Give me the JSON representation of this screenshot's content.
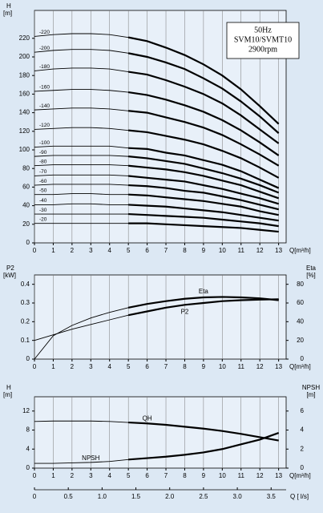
{
  "chart_data": [
    {
      "type": "line",
      "ylabel": [
        "H",
        "[m]"
      ],
      "xlabel": "Q[m³/h]",
      "annotation": [
        "50Hz",
        "SVM10/SVMT10",
        "2900rpm"
      ],
      "x": [
        0,
        1,
        2,
        3,
        4,
        5,
        6,
        7,
        8,
        9,
        10,
        11,
        12,
        13
      ],
      "xlim": [
        0,
        13.4
      ],
      "xticks": [
        0,
        1,
        2,
        3,
        4,
        5,
        6,
        7,
        8,
        9,
        10,
        11,
        12,
        13
      ],
      "ylim": [
        0,
        250
      ],
      "yticks": [
        0,
        20,
        40,
        60,
        80,
        100,
        120,
        140,
        160,
        180,
        200,
        220
      ],
      "grid": "x",
      "bold_range": [
        5,
        13
      ],
      "series": [
        {
          "name": "-220",
          "color": "#000000",
          "values": [
            222,
            224,
            225,
            225,
            224,
            221,
            217,
            210,
            202,
            192,
            180,
            165,
            147,
            128
          ]
        },
        {
          "name": "-200",
          "color": "#000000",
          "values": [
            205,
            207,
            208,
            208,
            207,
            204,
            200,
            194,
            187,
            177,
            166,
            152,
            136,
            118
          ]
        },
        {
          "name": "-180",
          "color": "#000000",
          "values": [
            185,
            187,
            188,
            188,
            187,
            184,
            181,
            175,
            168,
            160,
            150,
            137,
            122,
            107
          ]
        },
        {
          "name": "-160",
          "color": "#000000",
          "values": [
            163,
            164,
            165,
            165,
            164,
            162,
            159,
            154,
            148,
            141,
            132,
            121,
            108,
            94
          ]
        },
        {
          "name": "-140",
          "color": "#000000",
          "values": [
            143,
            144,
            145,
            145,
            144,
            142,
            140,
            135,
            130,
            124,
            116,
            106,
            95,
            83
          ]
        },
        {
          "name": "-120",
          "color": "#000000",
          "values": [
            122,
            123,
            124,
            124,
            123,
            121,
            119,
            115,
            111,
            106,
            99,
            91,
            81,
            70
          ]
        },
        {
          "name": "-100",
          "color": "#000000",
          "values": [
            103,
            104,
            104,
            104,
            104,
            102,
            101,
            97,
            94,
            89,
            84,
            77,
            68,
            59
          ]
        },
        {
          "name": "-90",
          "color": "#000000",
          "values": [
            93,
            94,
            94,
            94,
            94,
            93,
            91,
            88,
            85,
            80,
            75,
            69,
            62,
            54
          ]
        },
        {
          "name": "-80",
          "color": "#000000",
          "values": [
            83,
            84,
            84,
            84,
            84,
            83,
            81,
            79,
            76,
            72,
            67,
            62,
            55,
            48
          ]
        },
        {
          "name": "-70",
          "color": "#000000",
          "values": [
            72,
            73,
            73,
            73,
            73,
            72,
            70,
            68,
            66,
            62,
            58,
            53,
            48,
            42
          ]
        },
        {
          "name": "-60",
          "color": "#000000",
          "values": [
            62,
            63,
            63,
            63,
            63,
            62,
            61,
            59,
            56,
            54,
            50,
            46,
            41,
            36
          ]
        },
        {
          "name": "-50",
          "color": "#000000",
          "values": [
            52,
            52,
            53,
            53,
            52,
            52,
            51,
            49,
            47,
            45,
            42,
            39,
            34,
            30
          ]
        },
        {
          "name": "-40",
          "color": "#000000",
          "values": [
            41,
            41,
            42,
            42,
            41,
            41,
            40,
            39,
            37,
            35,
            33,
            30,
            27,
            24
          ]
        },
        {
          "name": "-30",
          "color": "#000000",
          "values": [
            31,
            31,
            31,
            31,
            31,
            31,
            30,
            29,
            28,
            27,
            25,
            23,
            21,
            18
          ]
        },
        {
          "name": "-20",
          "color": "#000000",
          "values": [
            21,
            21,
            21,
            21,
            21,
            21,
            21,
            20,
            19,
            18,
            17,
            16,
            14,
            12
          ]
        }
      ]
    },
    {
      "type": "line",
      "ylabel": [
        "P2",
        "[kW]"
      ],
      "y2label": [
        "Eta",
        "[%]"
      ],
      "xlabel": "Q[m³/h]",
      "x": [
        0,
        1,
        2,
        3,
        4,
        5,
        6,
        7,
        8,
        9,
        10,
        11,
        12,
        13
      ],
      "xlim": [
        0,
        13.4
      ],
      "xticks": [
        0,
        1,
        2,
        3,
        4,
        5,
        6,
        7,
        8,
        9,
        10,
        11,
        12,
        13
      ],
      "ylim": [
        0,
        0.45
      ],
      "yticks": [
        0,
        0.1,
        0.2,
        0.3,
        0.4
      ],
      "y2lim": [
        0,
        90
      ],
      "y2ticks": [
        0,
        20,
        40,
        60,
        80
      ],
      "grid": "x",
      "bold_range": [
        5,
        13
      ],
      "series": [
        {
          "name": "Eta",
          "color": "#000000",
          "axis": "y2",
          "values": [
            0,
            25,
            36,
            44,
            50,
            55,
            59,
            62,
            64.5,
            66,
            66.5,
            66,
            65,
            63
          ]
        },
        {
          "name": "P2",
          "color": "#000000",
          "values": [
            0.1,
            0.13,
            0.16,
            0.185,
            0.21,
            0.235,
            0.255,
            0.275,
            0.29,
            0.3,
            0.31,
            0.315,
            0.318,
            0.32
          ]
        }
      ]
    },
    {
      "type": "line",
      "ylabel": [
        "H",
        "[m]"
      ],
      "y2label": [
        "NPSH",
        "[m]"
      ],
      "xlabel": "Q[m³/h]",
      "x2label": "Q [ l/s]",
      "x": [
        0,
        1,
        2,
        3,
        4,
        5,
        6,
        7,
        8,
        9,
        10,
        11,
        12,
        13
      ],
      "xlim": [
        0,
        13.4
      ],
      "xticks": [
        0,
        1,
        2,
        3,
        4,
        5,
        6,
        7,
        8,
        9,
        10,
        11,
        12,
        13
      ],
      "x2lim": [
        0,
        3.722
      ],
      "x2ticks": [
        0,
        0.5,
        {
          "value": 1,
          "label": "1.0"
        },
        1.5,
        {
          "value": 2,
          "label": "2.0"
        },
        2.5,
        {
          "value": 3,
          "label": "3.0"
        },
        3.5
      ],
      "ylim": [
        0,
        15
      ],
      "yticks": [
        0,
        4,
        8,
        12
      ],
      "y2lim": [
        0,
        7.5
      ],
      "y2ticks": [
        0,
        2,
        4,
        6
      ],
      "grid": "x",
      "bold_range": [
        5,
        13
      ],
      "series": [
        {
          "name": "QH",
          "color": "#000000",
          "values": [
            9.8,
            9.9,
            9.9,
            9.9,
            9.8,
            9.6,
            9.4,
            9.1,
            8.7,
            8.3,
            7.8,
            7.2,
            6.5,
            5.8
          ]
        },
        {
          "name": "NPSH",
          "color": "#000000",
          "axis": "y2",
          "values": [
            0.5,
            0.5,
            0.55,
            0.6,
            0.7,
            0.9,
            1.05,
            1.2,
            1.4,
            1.65,
            2.0,
            2.5,
            3.0,
            3.7
          ]
        }
      ]
    }
  ]
}
